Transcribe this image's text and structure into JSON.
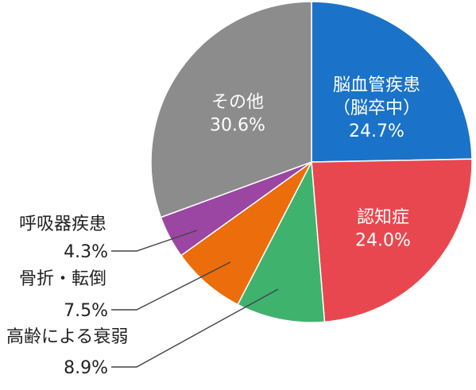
{
  "chart_data": {
    "type": "pie",
    "start": "12 o'clock",
    "direction": "clockwise",
    "slices": [
      {
        "label_lines": [
          "脳血管疾患",
          "（脳卒中）"
        ],
        "value": 24.7,
        "value_label": "24.7%",
        "color": "#1a73c8",
        "label_position": "inside"
      },
      {
        "label_lines": [
          "認知症"
        ],
        "value": 24.0,
        "value_label": "24.0%",
        "color": "#e8474f",
        "label_position": "inside"
      },
      {
        "label_lines": [
          "高齢による衰弱"
        ],
        "value": 8.9,
        "value_label": "8.9%",
        "color": "#3fb26e",
        "label_position": "outside-left"
      },
      {
        "label_lines": [
          "骨折・転倒"
        ],
        "value": 7.5,
        "value_label": "7.5%",
        "color": "#ec6d0b",
        "label_position": "outside-left"
      },
      {
        "label_lines": [
          "呼吸器疾患"
        ],
        "value": 4.3,
        "value_label": "4.3%",
        "color": "#9b46a2",
        "label_position": "outside-left"
      },
      {
        "label_lines": [
          "その他"
        ],
        "value": 30.6,
        "value_label": "30.6%",
        "color": "#8c8c8c",
        "label_position": "inside"
      }
    ]
  }
}
